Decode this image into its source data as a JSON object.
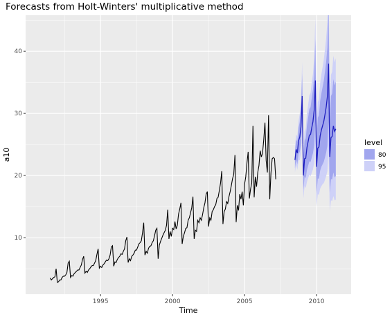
{
  "chart_data": {
    "type": "line",
    "title": "Forecasts from Holt-Winters' multiplicative method",
    "xlabel": "Time",
    "ylabel": "a10",
    "xlim": [
      1989.8,
      2012.4
    ],
    "ylim": [
      0.9,
      45.8
    ],
    "x_ticks": [
      1995,
      2000,
      2005,
      2010
    ],
    "y_ticks": [
      10,
      20,
      30,
      40
    ],
    "grid": true,
    "legend": {
      "title": "level",
      "position": "right",
      "entries": [
        {
          "label": "80",
          "color": "#a1a6ee"
        },
        {
          "label": "95",
          "color": "#ced1f8"
        }
      ]
    },
    "colors": {
      "panel_bg": "#ebebeb",
      "grid_major": "#ffffff",
      "observed_line": "#000000",
      "forecast_line": "#1f1fbf",
      "band80": "#a1a6ee",
      "band95": "#ced1f8"
    },
    "series": [
      {
        "role": "observed",
        "start": 1991.5,
        "frequency": 12,
        "values": [
          3.5,
          3.2,
          3.4,
          3.6,
          3.7,
          5.0,
          2.8,
          2.9,
          3.2,
          3.2,
          3.6,
          3.8,
          3.8,
          4.0,
          4.4,
          5.9,
          6.2,
          3.6,
          3.9,
          3.8,
          4.2,
          4.4,
          4.6,
          4.8,
          4.8,
          5.2,
          5.6,
          6.5,
          7.0,
          4.3,
          4.6,
          4.4,
          4.8,
          5.0,
          5.3,
          5.5,
          5.5,
          5.9,
          6.3,
          7.3,
          8.2,
          5.1,
          5.4,
          5.2,
          5.6,
          5.8,
          6.1,
          6.4,
          6.3,
          6.6,
          7.2,
          8.5,
          8.7,
          5.4,
          6.1,
          6.0,
          6.5,
          6.8,
          7.0,
          7.4,
          7.3,
          7.8,
          8.2,
          9.5,
          10.1,
          6.0,
          6.6,
          6.3,
          7.0,
          7.2,
          7.5,
          8.0,
          8.0,
          8.5,
          9.0,
          9.2,
          9.5,
          10.8,
          12.4,
          7.2,
          7.8,
          7.5,
          8.3,
          8.6,
          8.7,
          9.2,
          9.5,
          10.3,
          11.2,
          11.5,
          6.6,
          8.8,
          9.4,
          9.9,
          10.4,
          10.8,
          11.2,
          12.0,
          14.5,
          9.8,
          11.0,
          10.2,
          11.5,
          11.3,
          12.6,
          11.4,
          12.0,
          13.8,
          14.6,
          15.6,
          9.0,
          10.2,
          10.8,
          11.5,
          11.6,
          12.8,
          13.2,
          14.0,
          14.8,
          16.6,
          9.8,
          11.2,
          11.0,
          12.8,
          12.4,
          13.2,
          12.8,
          13.7,
          14.8,
          15.6,
          17.0,
          17.4,
          11.8,
          13.2,
          12.8,
          14.2,
          14.5,
          15.0,
          15.3,
          16.3,
          16.5,
          17.6,
          18.8,
          20.7,
          12.2,
          14.2,
          14.6,
          15.8,
          15.5,
          16.6,
          17.4,
          18.4,
          19.5,
          20.2,
          23.3,
          12.5,
          15.2,
          14.4,
          17.0,
          16.2,
          17.4,
          15.2,
          18.6,
          19.8,
          22.0,
          23.8,
          16.3,
          17.8,
          18.8,
          28.0,
          16.5,
          19.8,
          18.2,
          20.5,
          21.6,
          24.0,
          23.0,
          23.6,
          25.8,
          28.5,
          22.4,
          20.5,
          29.7,
          16.2,
          20.4,
          22.7,
          22.9,
          22.7,
          19.4
        ]
      },
      {
        "role": "forecast",
        "start": 2008.5,
        "frequency": 12,
        "values": [
          22.5,
          24.2,
          23.6,
          25.6,
          26.2,
          27.8,
          32.8,
          20.0,
          22.7,
          22.8,
          24.5,
          25.5,
          26.5,
          26.6,
          27.7,
          28.7,
          30.5,
          35.3,
          21.4,
          24.4,
          24.6,
          26.4,
          27.3,
          28.0,
          28.7,
          29.8,
          31.0,
          32.7,
          38.0,
          23.0,
          26.1,
          26.3,
          28.0,
          27.1,
          27.5
        ],
        "lower80": [
          21.2,
          22.6,
          21.8,
          23.5,
          23.8,
          25.0,
          29.2,
          17.6,
          19.8,
          19.6,
          20.9,
          21.6,
          22.3,
          22.2,
          22.9,
          23.6,
          24.9,
          28.6,
          17.2,
          19.5,
          19.5,
          20.8,
          21.4,
          21.8,
          22.2,
          22.9,
          23.7,
          24.8,
          28.7,
          17.2,
          19.4,
          19.4,
          20.5,
          19.7,
          19.9
        ],
        "upper80": [
          23.8,
          25.8,
          25.4,
          27.7,
          28.6,
          30.6,
          36.4,
          22.4,
          25.6,
          26.0,
          28.1,
          29.4,
          30.7,
          31.0,
          32.5,
          33.8,
          36.1,
          42.0,
          25.6,
          29.3,
          29.7,
          32.0,
          33.2,
          34.2,
          35.2,
          36.7,
          38.3,
          40.6,
          47.3,
          28.8,
          32.8,
          33.2,
          35.5,
          34.5,
          35.1
        ],
        "lower95": [
          20.5,
          21.8,
          20.9,
          22.4,
          22.5,
          23.5,
          27.3,
          16.3,
          18.3,
          18.0,
          19.0,
          19.6,
          20.1,
          19.9,
          20.4,
          21.0,
          22.0,
          25.1,
          15.0,
          17.0,
          16.9,
          17.9,
          18.3,
          18.6,
          18.8,
          19.3,
          19.9,
          20.7,
          23.9,
          14.3,
          16.0,
          15.9,
          16.7,
          16.0,
          16.1
        ],
        "upper95": [
          24.5,
          26.6,
          26.3,
          28.8,
          29.9,
          32.1,
          38.3,
          23.7,
          27.1,
          27.6,
          30.0,
          31.4,
          32.9,
          33.3,
          35.0,
          36.4,
          39.0,
          45.5,
          27.8,
          31.8,
          32.3,
          34.9,
          36.3,
          37.4,
          38.6,
          40.3,
          42.1,
          44.7,
          52.1,
          31.7,
          36.2,
          36.7,
          39.3,
          38.2,
          38.9
        ]
      }
    ]
  }
}
